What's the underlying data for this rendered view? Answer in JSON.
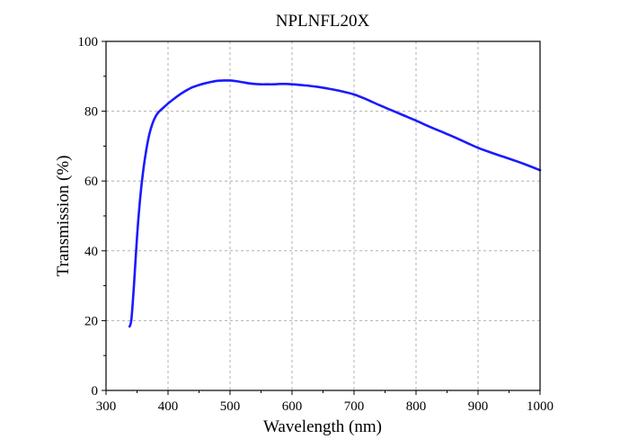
{
  "chart_data": {
    "type": "line",
    "title": "NPLNFL20X",
    "xlabel": "Wavelength (nm)",
    "ylabel": "Transmission (%)",
    "xlim": [
      300,
      1000
    ],
    "ylim": [
      0,
      100
    ],
    "xticks": [
      "300",
      "400",
      "500",
      "600",
      "700",
      "800",
      "900",
      "1000"
    ],
    "yticks": [
      "0",
      "20",
      "40",
      "60",
      "80",
      "100"
    ],
    "grid": true,
    "series": [
      {
        "color": "#1a1aff",
        "x": [
          338,
          341,
          345,
          350,
          355,
          360,
          365,
          370,
          375,
          380,
          385,
          390,
          400,
          410,
          420,
          430,
          440,
          450,
          460,
          470,
          480,
          490,
          500,
          510,
          520,
          530,
          540,
          550,
          560,
          570,
          580,
          590,
          600,
          620,
          640,
          660,
          680,
          700,
          720,
          740,
          760,
          780,
          800,
          820,
          840,
          860,
          880,
          900,
          920,
          940,
          960,
          980,
          1000
        ],
        "y": [
          18.3,
          20.5,
          30,
          44,
          55,
          63,
          69,
          73.5,
          76.5,
          78.5,
          79.8,
          80.6,
          82.2,
          83.6,
          84.9,
          86.0,
          86.9,
          87.5,
          88.0,
          88.4,
          88.7,
          88.8,
          88.8,
          88.6,
          88.3,
          88.0,
          87.8,
          87.7,
          87.7,
          87.7,
          87.8,
          87.8,
          87.7,
          87.4,
          87.0,
          86.4,
          85.7,
          84.8,
          83.4,
          81.8,
          80.3,
          78.8,
          77.3,
          75.7,
          74.2,
          72.7,
          71.1,
          69.5,
          68.2,
          67.0,
          65.8,
          64.5,
          63.1
        ]
      }
    ]
  }
}
